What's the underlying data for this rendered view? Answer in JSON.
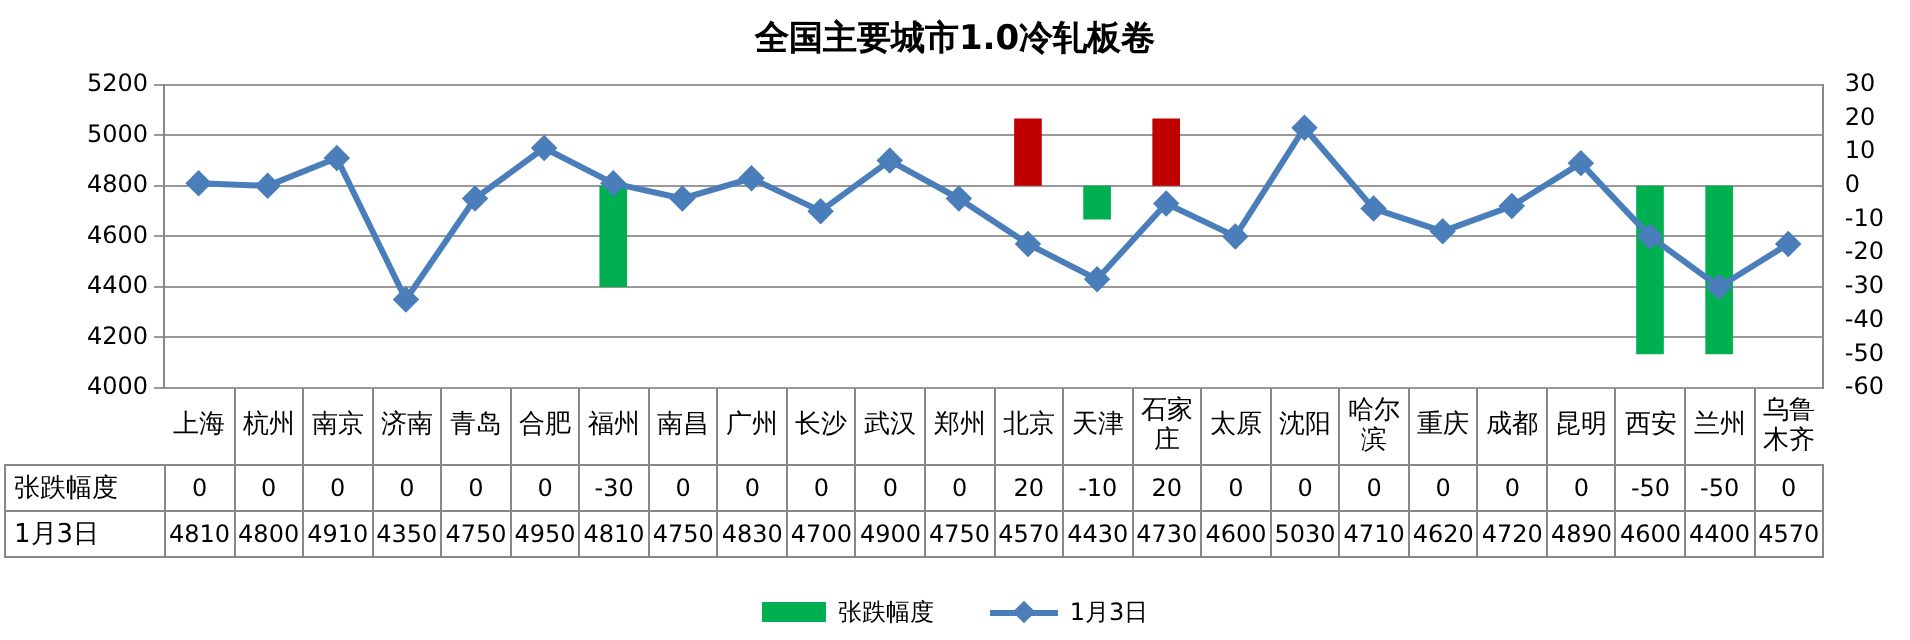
{
  "chart_data": {
    "type": "bar",
    "title": "全国主要城市1.0冷轧板卷",
    "categories": [
      "上海",
      "杭州",
      "南京",
      "济南",
      "青岛",
      "合肥",
      "福州",
      "南昌",
      "广州",
      "长沙",
      "武汉",
      "郑州",
      "北京",
      "天津",
      "石家庄",
      "太原",
      "沈阳",
      "哈尔滨",
      "重庆",
      "成都",
      "昆明",
      "西安",
      "兰州",
      "乌鲁木齐"
    ],
    "series": [
      {
        "name": "张跌幅度",
        "axis": "y2",
        "colors": [
          "#00b050",
          "#00b050",
          "#00b050",
          "#00b050",
          "#00b050",
          "#00b050",
          "#00b050",
          "#00b050",
          "#00b050",
          "#00b050",
          "#00b050",
          "#00b050",
          "#c00000",
          "#00b050",
          "#c00000",
          "#00b050",
          "#00b050",
          "#00b050",
          "#00b050",
          "#00b050",
          "#00b050",
          "#00b050",
          "#00b050",
          "#00b050"
        ],
        "color": "#00b050",
        "values": [
          0,
          0,
          0,
          0,
          0,
          0,
          -30,
          0,
          0,
          0,
          0,
          0,
          20,
          -10,
          20,
          0,
          0,
          0,
          0,
          0,
          0,
          -50,
          -50,
          0
        ]
      },
      {
        "name": "1月3日",
        "type": "line",
        "color": "#4a7ebb",
        "marker": "diamond",
        "values": [
          4810,
          4800,
          4910,
          4350,
          4750,
          4950,
          4810,
          4750,
          4830,
          4700,
          4900,
          4750,
          4570,
          4430,
          4730,
          4600,
          5030,
          4710,
          4620,
          4720,
          4890,
          4600,
          4400,
          4570
        ]
      }
    ],
    "ylim": [
      4000,
      5200
    ],
    "yticks": [
      4000,
      4200,
      4400,
      4600,
      4800,
      5000,
      5200
    ],
    "y2lim": [
      -60,
      30
    ],
    "y2ticks": [
      -60,
      -50,
      -40,
      -30,
      -20,
      -10,
      0,
      10,
      20,
      30
    ],
    "grid": "y",
    "legend": "bottom",
    "data_labels": true
  }
}
